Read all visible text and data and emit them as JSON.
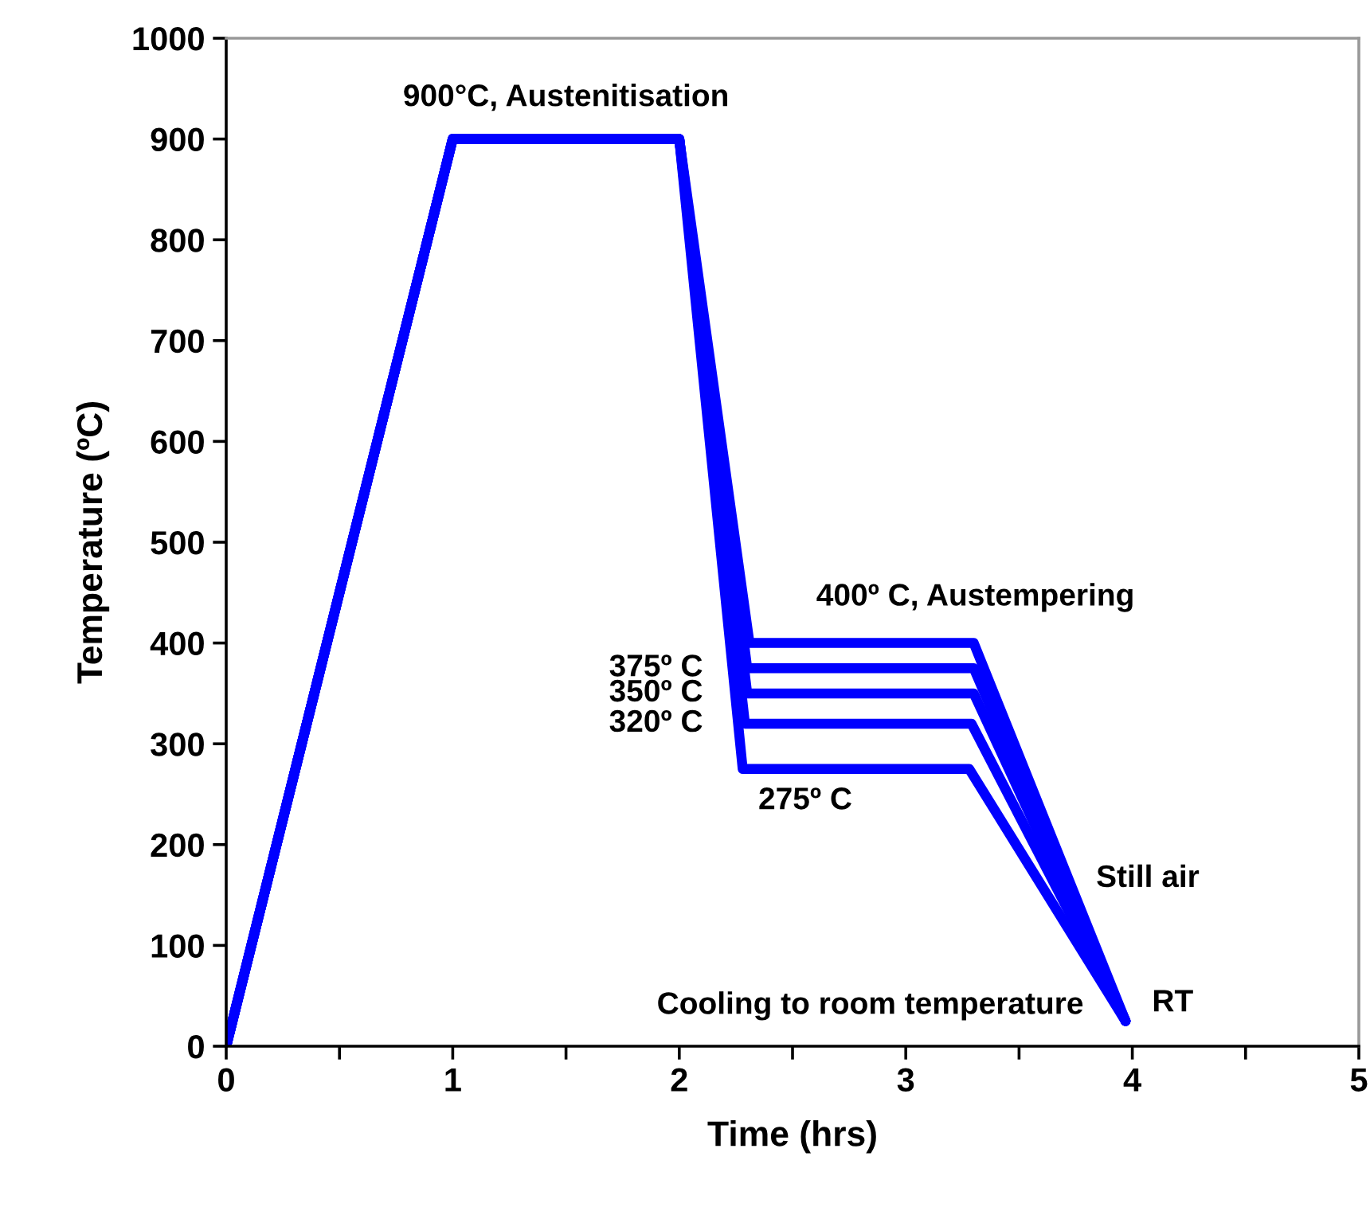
{
  "chart_data": {
    "type": "line",
    "xlabel": "Time (hrs)",
    "ylabel": "Temperature (ºC)",
    "xlim": [
      0,
      5
    ],
    "ylim": [
      0,
      1000
    ],
    "xticks": [
      0,
      {
        "value": 0.5,
        "label": null
      },
      1,
      {
        "value": 1.5,
        "label": null
      },
      2,
      {
        "value": 2.5,
        "label": null
      },
      3,
      {
        "value": 3.5,
        "label": null
      },
      4,
      {
        "value": 4.5,
        "label": null
      },
      5
    ],
    "yticks": [
      0,
      100,
      200,
      300,
      400,
      500,
      600,
      700,
      800,
      900,
      1000
    ],
    "grid": false,
    "marker": "none",
    "line_style": "solid",
    "series": [
      {
        "color": "#0000ff",
        "x": [
          0,
          1,
          2,
          2.28,
          3.28,
          3.97
        ],
        "values": [
          0,
          900,
          900,
          275,
          275,
          25
        ]
      },
      {
        "color": "#0000ff",
        "x": [
          0,
          1,
          2,
          2.29,
          3.29,
          3.97
        ],
        "values": [
          0,
          900,
          900,
          320,
          320,
          25
        ]
      },
      {
        "color": "#0000ff",
        "x": [
          0,
          1,
          2,
          2.3,
          3.3,
          3.97
        ],
        "values": [
          0,
          900,
          900,
          350,
          350,
          25
        ]
      },
      {
        "color": "#0000ff",
        "x": [
          0,
          1,
          2,
          2.3,
          3.3,
          3.97
        ],
        "values": [
          0,
          900,
          900,
          375,
          375,
          25
        ]
      },
      {
        "color": "#0000ff",
        "x": [
          0,
          1,
          2,
          2.31,
          3.3,
          3.97
        ],
        "values": [
          0,
          900,
          900,
          400,
          400,
          25
        ]
      }
    ],
    "annotations": [
      {
        "text": "900°C, Austenitisation",
        "x": 1.5,
        "y": 900
      },
      {
        "text": "400º C, Austempering",
        "x": 2.8,
        "y": 400
      },
      {
        "text": "375º C",
        "x": 2.3,
        "y": 375
      },
      {
        "text": "350º C",
        "x": 2.3,
        "y": 350
      },
      {
        "text": "320º C",
        "x": 2.3,
        "y": 320
      },
      {
        "text": "275º C",
        "x": 2.3,
        "y": 275
      },
      "Still air",
      "Cooling to room temperature",
      {
        "text": "RT",
        "x": 3.97,
        "y": 25
      }
    ]
  }
}
